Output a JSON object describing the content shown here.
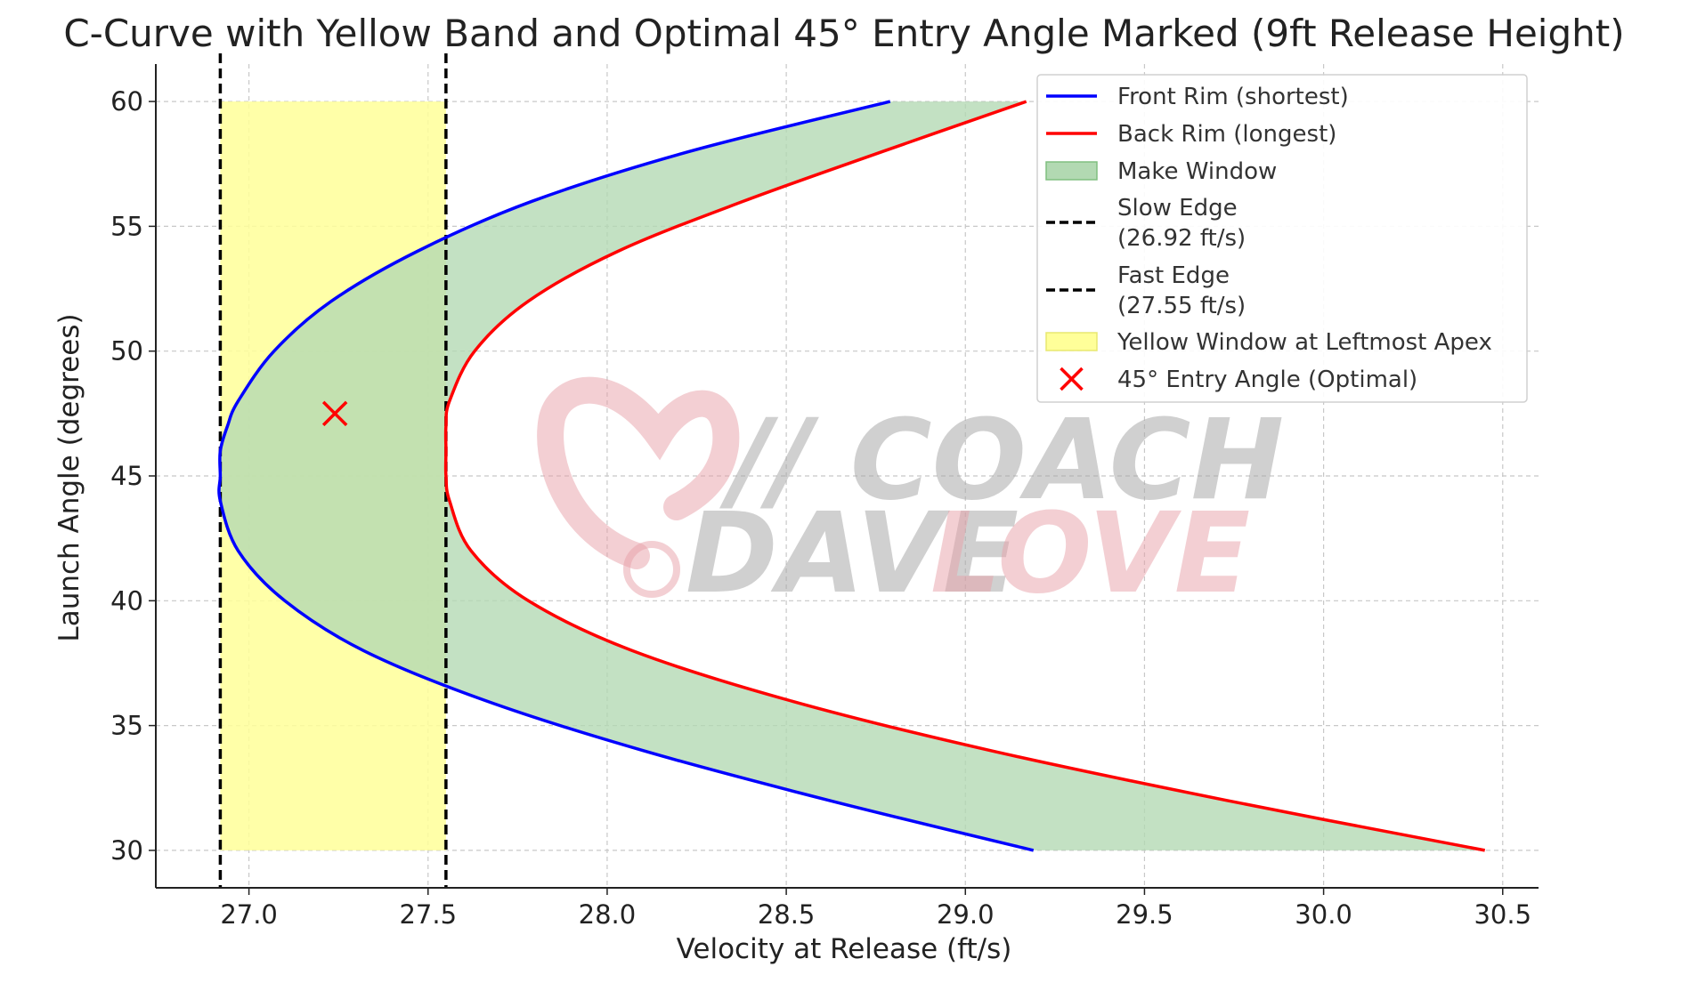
{
  "chart_data": {
    "type": "line",
    "title": "C-Curve with Yellow Band and Optimal 45° Entry Angle Marked (9ft Release Height)",
    "xlabel": "Velocity at Release (ft/s)",
    "ylabel": "Launch Angle (degrees)",
    "xlim": [
      26.74,
      30.6
    ],
    "ylim": [
      28.5,
      61.5
    ],
    "x_ticks": [
      "27.0",
      "27.5",
      "28.0",
      "28.5",
      "29.0",
      "29.5",
      "30.0",
      "30.5"
    ],
    "y_ticks": [
      "30",
      "35",
      "40",
      "45",
      "50",
      "55",
      "60"
    ],
    "grid": true,
    "legend_position": "top-right",
    "series": [
      {
        "name": "Front Rim (shortest)",
        "color": "#0000ff",
        "angles": [
          30,
          32,
          34,
          36,
          38,
          40,
          42,
          44,
          45,
          46,
          47,
          48,
          50,
          52,
          54,
          56,
          58,
          60
        ],
        "values": [
          29.19,
          28.62,
          28.1,
          27.66,
          27.32,
          27.1,
          26.97,
          26.92,
          26.92,
          26.92,
          26.94,
          26.97,
          27.07,
          27.23,
          27.47,
          27.79,
          28.23,
          28.79
        ]
      },
      {
        "name": "Back Rim (longest)",
        "color": "#ff0000",
        "angles": [
          30,
          32,
          34,
          36,
          38,
          40,
          42,
          44,
          45,
          46,
          47,
          48,
          50,
          52,
          54,
          56,
          58,
          60
        ],
        "values": [
          30.45,
          29.73,
          29.07,
          28.51,
          28.07,
          27.78,
          27.62,
          27.56,
          27.55,
          27.55,
          27.55,
          27.56,
          27.63,
          27.78,
          28.03,
          28.38,
          28.77,
          29.17
        ]
      }
    ],
    "make_window": {
      "name": "Make Window",
      "color": "#b2d9b2",
      "between": [
        "Front Rim (shortest)",
        "Back Rim (longest)"
      ]
    },
    "vertical_lines": [
      {
        "name": "Slow Edge\n(26.92 ft/s)",
        "x": 26.92,
        "style": "dashed",
        "color": "#000000"
      },
      {
        "name": "Fast Edge\n(27.55 ft/s)",
        "x": 27.55,
        "style": "dashed",
        "color": "#000000"
      }
    ],
    "band": {
      "name": "Yellow Window at Leftmost Apex",
      "x_range": [
        26.92,
        27.55
      ],
      "y_range": [
        30,
        60
      ],
      "color": "#ffff99"
    },
    "marker": {
      "name": "45° Entry Angle (Optimal)",
      "x": 27.24,
      "y": 47.5,
      "symbol": "x",
      "color": "#ff0000"
    }
  },
  "watermark": {
    "line1": "// COACH",
    "line2a": "DAVE",
    "line2b": "LOVE"
  }
}
